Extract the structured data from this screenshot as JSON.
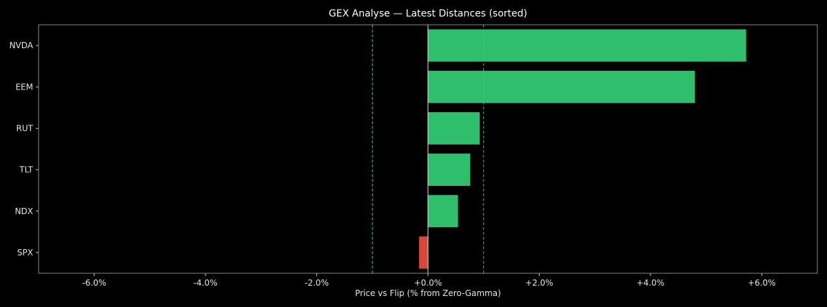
{
  "chart_data": {
    "type": "bar",
    "orientation": "horizontal",
    "title": "GEX Analyse — Latest Distances (sorted)",
    "xlabel": "Price vs Flip (% from Zero-Gamma)",
    "ylabel": "",
    "categories": [
      "NVDA",
      "EEM",
      "RUT",
      "TLT",
      "NDX",
      "SPX"
    ],
    "values": [
      5.72,
      4.8,
      0.93,
      0.76,
      0.54,
      -0.16
    ],
    "xlim": [
      -7.0,
      7.0
    ],
    "xticks": [
      -6,
      -4,
      -2,
      0,
      2,
      4,
      6
    ],
    "xtick_labels": [
      "-6.0%",
      "-4.0%",
      "-2.0%",
      "+0.0%",
      "+2.0%",
      "+4.0%",
      "+6.0%"
    ],
    "reference_lines": [
      {
        "x": -1.0,
        "style": "dashed",
        "color": "#2ecc71"
      },
      {
        "x": 1.0,
        "style": "dashed",
        "color": "#2ecc71"
      },
      {
        "x": 0.0,
        "style": "solid",
        "color": "#e6e6e6"
      }
    ],
    "colors": {
      "positive": "#2ebe6c",
      "negative": "#d9473a",
      "background": "#000000",
      "frame": "#8a8a8a"
    },
    "grid": false,
    "legend": "none"
  }
}
